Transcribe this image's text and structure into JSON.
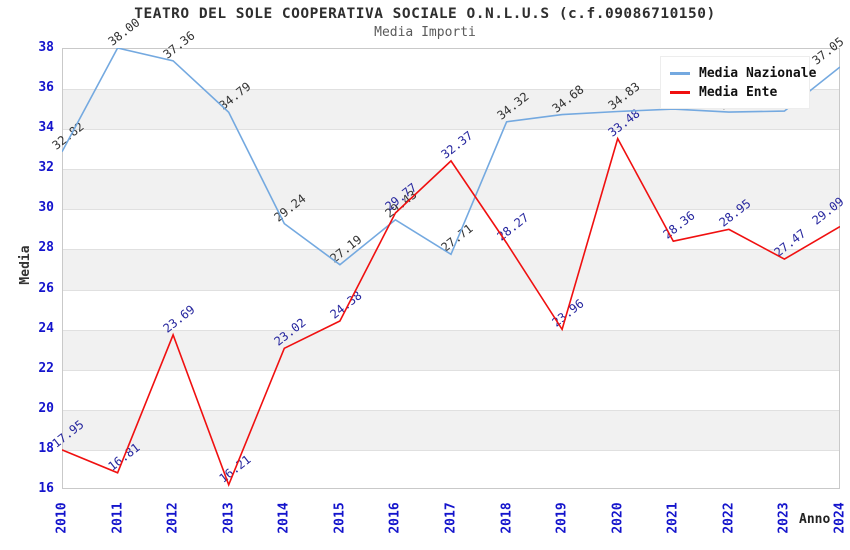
{
  "header": {
    "title": "TEATRO DEL SOLE COOPERATIVA SOCIALE O.N.L.U.S (c.f.09086710150)",
    "subtitle": "Media Importi"
  },
  "chart_data": {
    "type": "line",
    "title": "TEATRO DEL SOLE COOPERATIVA SOCIALE O.N.L.U.S (c.f.09086710150)",
    "subtitle": "Media Importi",
    "xlabel": "Anno",
    "ylabel": "Media",
    "x": [
      "2010",
      "2011",
      "2012",
      "2013",
      "2014",
      "2015",
      "2016",
      "2017",
      "2018",
      "2019",
      "2020",
      "2021",
      "2022",
      "2023",
      "2024"
    ],
    "ylim": [
      16,
      38
    ],
    "ytick_step": 2,
    "grid": "horizontal-bands",
    "band_color": "#f1f1f1",
    "axis_label_color": "#1414cc",
    "legend_position": "top-right",
    "series": [
      {
        "name": "Media Nazionale",
        "color": "#74a9e0",
        "label_color": "#333333",
        "values": [
          32.82,
          38.0,
          37.36,
          34.79,
          29.24,
          27.19,
          29.43,
          27.71,
          34.32,
          34.68,
          34.83,
          34.95,
          34.8,
          34.85,
          37.05
        ]
      },
      {
        "name": "Media Ente",
        "color": "#f01010",
        "label_color": "#26269e",
        "values": [
          17.95,
          16.81,
          23.69,
          16.21,
          23.02,
          24.38,
          29.77,
          32.37,
          28.27,
          23.96,
          33.48,
          28.36,
          28.95,
          27.47,
          29.09
        ]
      }
    ]
  }
}
